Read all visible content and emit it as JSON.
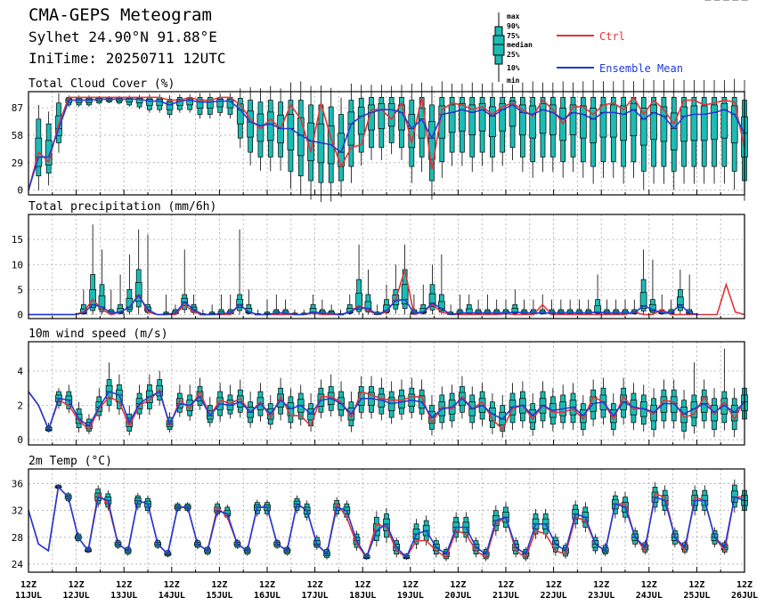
{
  "header": {
    "title": "CMA-GEPS Meteogram",
    "location": "Sylhet 24.90°N 91.88°E",
    "init_time": "IniTime: 20250711 12UTC"
  },
  "legend": {
    "box_labels": [
      "max",
      "90%",
      "75%",
      "median",
      "25%",
      "10%",
      "min"
    ],
    "ctrl_label": "Ctrl",
    "mean_label": "Ensemble Mean",
    "ctrl_color": "#e0343a",
    "mean_color": "#1f3bd6",
    "box_fill": "#1bbcb4"
  },
  "x_axis": {
    "hour_label": "12Z",
    "dates": [
      "11JUL",
      "12JUL",
      "13JUL",
      "14JUL",
      "15JUL",
      "16JUL",
      "17JUL",
      "18JUL",
      "19JUL",
      "20JUL",
      "21JUL",
      "22JUL",
      "23JUL",
      "24JUL",
      "25JUL",
      "26JUL"
    ]
  },
  "chart_data": [
    {
      "type": "box",
      "title": "Total Cloud Cover (%)",
      "yticks": [
        0,
        29,
        58,
        87
      ],
      "ylim": [
        -5,
        104
      ],
      "grid": true,
      "time_step_hours": 6,
      "ctrl": [
        0,
        40,
        30,
        70,
        98,
        98,
        98,
        98,
        98,
        98,
        98,
        98,
        98,
        98,
        95,
        95,
        98,
        95,
        95,
        98,
        98,
        90,
        75,
        65,
        75,
        65,
        90,
        75,
        40,
        92,
        55,
        25,
        45,
        48,
        85,
        85,
        75,
        92,
        50,
        98,
        22,
        85,
        92,
        90,
        85,
        88,
        80,
        88,
        92,
        85,
        78,
        95,
        85,
        70,
        88,
        88,
        80,
        90,
        92,
        85,
        98,
        80,
        95,
        85,
        70,
        95,
        95,
        90,
        92,
        95,
        93,
        45
      ],
      "mean": [
        0,
        35,
        35,
        65,
        95,
        95,
        95,
        96,
        96,
        96,
        96,
        96,
        94,
        94,
        90,
        94,
        95,
        93,
        93,
        94,
        94,
        85,
        72,
        68,
        70,
        65,
        65,
        58,
        52,
        50,
        48,
        40,
        70,
        78,
        82,
        85,
        85,
        82,
        65,
        75,
        55,
        80,
        82,
        85,
        82,
        85,
        78,
        85,
        90,
        82,
        80,
        85,
        82,
        75,
        82,
        80,
        75,
        82,
        82,
        80,
        85,
        75,
        82,
        78,
        65,
        78,
        80,
        80,
        82,
        85,
        80,
        60
      ],
      "p10": [
        0,
        15,
        18,
        50,
        90,
        90,
        90,
        92,
        93,
        92,
        90,
        88,
        85,
        85,
        80,
        85,
        85,
        80,
        80,
        82,
        80,
        55,
        40,
        35,
        35,
        35,
        20,
        15,
        10,
        8,
        8,
        10,
        25,
        40,
        45,
        45,
        50,
        45,
        25,
        35,
        10,
        30,
        40,
        40,
        35,
        40,
        35,
        40,
        45,
        35,
        30,
        35,
        35,
        30,
        35,
        30,
        25,
        30,
        30,
        25,
        30,
        20,
        25,
        25,
        20,
        25,
        25,
        25,
        25,
        25,
        20,
        10
      ],
      "p90": [
        0,
        75,
        70,
        92,
        98,
        98,
        98,
        98,
        98,
        98,
        98,
        98,
        98,
        98,
        96,
        98,
        98,
        98,
        98,
        98,
        98,
        97,
        95,
        93,
        95,
        93,
        95,
        95,
        90,
        90,
        88,
        80,
        95,
        97,
        98,
        98,
        98,
        98,
        95,
        98,
        90,
        98,
        98,
        98,
        98,
        98,
        98,
        98,
        98,
        98,
        98,
        98,
        98,
        98,
        98,
        98,
        98,
        98,
        98,
        98,
        98,
        98,
        98,
        98,
        98,
        98,
        98,
        98,
        98,
        98,
        98,
        95
      ]
    },
    {
      "type": "box",
      "title": "Total precipitation (mm/6h)",
      "yticks": [
        0,
        5,
        10,
        15
      ],
      "ylim": [
        -0.8,
        20
      ],
      "grid": true,
      "ctrl": [
        0,
        0,
        0,
        0,
        0,
        0,
        0.5,
        3,
        1,
        0,
        0.5,
        1.5,
        4,
        0.5,
        0,
        0,
        0,
        2,
        0.5,
        0,
        0,
        0,
        0,
        2,
        0.5,
        0,
        0,
        0,
        0,
        0,
        0,
        0.3,
        0,
        0,
        0,
        0.5,
        1.8,
        0.8,
        0,
        0.5,
        3,
        9,
        0,
        0.5,
        2,
        0.5,
        0,
        0,
        0,
        0,
        0,
        0,
        0.2,
        0,
        0,
        0,
        2,
        0,
        0,
        0,
        0,
        0,
        0,
        0,
        0,
        0,
        0.5,
        0,
        0,
        1,
        0,
        0,
        0,
        0,
        0,
        0,
        6,
        0.5,
        0
      ],
      "mean": [
        0,
        0,
        0,
        0,
        0,
        0,
        0.3,
        2,
        1.5,
        0.3,
        0.5,
        1.5,
        3.8,
        1,
        0,
        0,
        0.3,
        2.5,
        1,
        0,
        0,
        0.2,
        0.3,
        2,
        0.5,
        0,
        0,
        0.3,
        0.3,
        0,
        0,
        0.5,
        0.3,
        0.2,
        0,
        0.5,
        1.5,
        1.2,
        0,
        0.8,
        2.8,
        3,
        0.3,
        0.5,
        2.3,
        1.2,
        0,
        0.3,
        0.3,
        0.3,
        0.3,
        0.3,
        0.3,
        0.5,
        0.3,
        0.3,
        0.3,
        0.3,
        0.3,
        0.3,
        0.3,
        0.3,
        0.5,
        0.3,
        0.3,
        0.3,
        0.3,
        1.8,
        1,
        0.3,
        0.3,
        2,
        0.3,
        0
      ],
      "p90": [
        0,
        0,
        0,
        0,
        0,
        0,
        2,
        8,
        6,
        1,
        2,
        5,
        9,
        2,
        0,
        0.5,
        1,
        4,
        2,
        0.2,
        0.5,
        1,
        1,
        4,
        2,
        0.2,
        0.5,
        1,
        1,
        0.3,
        0.3,
        2,
        1,
        0.8,
        0.2,
        2,
        7,
        4,
        0.5,
        3,
        5,
        9,
        1,
        2,
        6,
        4,
        0.5,
        1,
        2,
        1,
        1,
        1,
        1,
        2,
        1,
        1,
        1,
        1,
        1,
        1,
        1,
        1,
        3,
        1,
        1,
        1,
        1,
        7,
        3,
        1,
        1,
        5,
        1,
        0
      ],
      "max": [
        0,
        0,
        0,
        0,
        0,
        0,
        5,
        18,
        13,
        5,
        8,
        12,
        17,
        16,
        1,
        4,
        2,
        13,
        4,
        1,
        2,
        4,
        4,
        17,
        5,
        1,
        3,
        4,
        3,
        1,
        1,
        4,
        3,
        2,
        1,
        4,
        14,
        9,
        2,
        6,
        10,
        14,
        4,
        6,
        10,
        12,
        2,
        4,
        4,
        3,
        4,
        3,
        3,
        5,
        3,
        3,
        4,
        3,
        3,
        3,
        3,
        3,
        8,
        3,
        3,
        3,
        3,
        13,
        11,
        4,
        3,
        9,
        8,
        0
      ]
    },
    {
      "type": "box",
      "title": "10m wind speed (m/s)",
      "yticks": [
        0,
        2,
        4
      ],
      "ylim": [
        -0.3,
        5.7
      ],
      "grid": true,
      "ctrl": [
        2.8,
        2.0,
        0.6,
        2.3,
        2.0,
        1.1,
        0.6,
        1.8,
        2.5,
        2.2,
        0.8,
        2.0,
        2.3,
        2.9,
        0.8,
        2.3,
        1.8,
        2.8,
        1.4,
        2.3,
        2.1,
        2.4,
        1.6,
        2.2,
        1.3,
        2.5,
        1.4,
        1.4,
        0.8,
        2.5,
        2.5,
        2.2,
        1.3,
        2.8,
        2.6,
        2.4,
        2.3,
        2.3,
        2.5,
        2.5,
        1.0,
        1.9,
        1.8,
        2.5,
        1.8,
        2.2,
        1.2,
        0.6,
        1.8,
        2.0,
        1.2,
        2.0,
        1.6,
        1.6,
        1.8,
        1.2,
        2.5,
        2.2,
        1.2,
        2.5,
        1.8,
        1.8,
        1.5,
        2.3,
        2.2,
        1.3,
        1.5,
        2.5,
        1.5,
        2.2,
        1.2,
        2.3
      ],
      "mean": [
        2.8,
        2.0,
        0.6,
        2.4,
        2.3,
        1.2,
        0.8,
        1.9,
        2.8,
        2.6,
        1.0,
        2.1,
        2.5,
        2.8,
        0.9,
        2.1,
        2.0,
        2.5,
        1.4,
        2.1,
        2.0,
        2.2,
        1.6,
        2.1,
        1.5,
        2.3,
        1.8,
        2.0,
        1.5,
        2.3,
        2.4,
        2.1,
        1.5,
        2.4,
        2.4,
        2.3,
        2.1,
        2.2,
        2.3,
        2.2,
        1.3,
        1.8,
        1.9,
        2.4,
        1.8,
        2.0,
        1.5,
        1.2,
        1.9,
        2.0,
        1.4,
        2.0,
        1.7,
        1.8,
        1.9,
        1.4,
        2.1,
        2.2,
        1.4,
        2.2,
        1.9,
        1.8,
        1.6,
        2.1,
        2.1,
        1.5,
        1.8,
        2.1,
        1.6,
        2.0,
        1.6,
        2.2
      ],
      "p10": [
        2.8,
        2.0,
        0.5,
        2.0,
        1.8,
        0.7,
        0.5,
        1.4,
        2.0,
        1.8,
        0.5,
        1.5,
        1.8,
        2.3,
        0.6,
        1.6,
        1.4,
        2.0,
        1.0,
        1.4,
        1.5,
        1.6,
        1.0,
        1.4,
        0.9,
        1.5,
        1.0,
        1.2,
        0.8,
        1.6,
        1.7,
        1.4,
        0.8,
        1.6,
        1.6,
        1.5,
        1.3,
        1.5,
        1.6,
        1.5,
        0.6,
        1.0,
        1.1,
        1.6,
        1.0,
        1.2,
        0.7,
        0.5,
        1.0,
        1.1,
        0.6,
        1.1,
        0.9,
        1.0,
        1.0,
        0.6,
        1.2,
        1.3,
        0.6,
        1.3,
        1.0,
        0.9,
        0.6,
        1.1,
        1.1,
        0.5,
        0.8,
        1.1,
        0.6,
        1.0,
        0.6,
        1.2
      ],
      "p90": [
        2.8,
        2.0,
        0.8,
        2.8,
        2.8,
        1.8,
        1.2,
        2.5,
        3.5,
        3.2,
        1.5,
        2.7,
        3.2,
        3.5,
        1.3,
        2.7,
        2.6,
        3.1,
        2.0,
        2.8,
        2.6,
        2.9,
        2.2,
        2.8,
        2.1,
        3.0,
        2.5,
        2.7,
        2.1,
        3.0,
        3.1,
        2.8,
        2.2,
        3.1,
        3.1,
        3.0,
        2.8,
        2.9,
        3.0,
        2.9,
        2.0,
        2.6,
        2.7,
        3.1,
        2.6,
        2.8,
        2.2,
        2.0,
        2.7,
        2.8,
        2.1,
        2.8,
        2.5,
        2.6,
        2.7,
        2.1,
        2.9,
        3.0,
        2.1,
        3.0,
        2.7,
        2.6,
        2.4,
        2.9,
        2.9,
        2.3,
        2.6,
        2.9,
        2.4,
        2.8,
        2.4,
        3.0
      ],
      "max": [
        2.8,
        2.0,
        1.0,
        3.0,
        3.2,
        2.2,
        1.5,
        3.0,
        4.5,
        3.8,
        2.0,
        3.2,
        3.8,
        4.0,
        1.6,
        3.2,
        3.2,
        3.6,
        2.5,
        3.3,
        3.2,
        3.5,
        2.8,
        3.3,
        2.6,
        3.6,
        3.0,
        3.2,
        2.7,
        3.5,
        3.8,
        3.4,
        2.8,
        3.7,
        3.7,
        3.6,
        3.4,
        3.5,
        3.6,
        3.5,
        2.6,
        3.1,
        3.2,
        3.7,
        3.1,
        3.3,
        2.7,
        2.6,
        3.3,
        3.4,
        2.7,
        3.4,
        3.0,
        3.2,
        3.3,
        2.6,
        3.5,
        3.6,
        2.7,
        3.6,
        3.3,
        3.2,
        3.0,
        3.5,
        3.5,
        2.9,
        4.5,
        3.5,
        3.0,
        5.3,
        3.0,
        3.6
      ]
    },
    {
      "type": "box",
      "title": "2m Temp (°C)",
      "yticks": [
        24,
        28,
        32,
        36
      ],
      "ylim": [
        22.8,
        38.2
      ],
      "grid": true,
      "ctrl": [
        32,
        27,
        26,
        35.5,
        34,
        28,
        26,
        34.5,
        33,
        27,
        26,
        33.5,
        33,
        27,
        25.5,
        32.5,
        32.5,
        27,
        26,
        32.5,
        31,
        27,
        26,
        32.5,
        32.5,
        27,
        26,
        33,
        32,
        27,
        25.5,
        33,
        31,
        27,
        25,
        30,
        29.5,
        26,
        25,
        27.5,
        27.5,
        26,
        25,
        29,
        28.5,
        26,
        25,
        30,
        31,
        26,
        25,
        29,
        28.5,
        26,
        25.5,
        31,
        30.5,
        27,
        26,
        33,
        33,
        28,
        26,
        34.5,
        34,
        28,
        26,
        34,
        33.5,
        28,
        26,
        34,
        34
      ],
      "mean": [
        32,
        27,
        26,
        35.5,
        34,
        28,
        26,
        34,
        33.5,
        27,
        26,
        33.5,
        33,
        27,
        25.5,
        32.5,
        32.5,
        27,
        26,
        32,
        31.5,
        27,
        26,
        32.5,
        32.5,
        27,
        26,
        33,
        32,
        27,
        25.5,
        32.5,
        32,
        27.5,
        25,
        29,
        30,
        26.5,
        25,
        28.5,
        29,
        26.5,
        25.5,
        29.5,
        29.5,
        26.5,
        25.5,
        30.5,
        31,
        26.5,
        25.5,
        30,
        30,
        27,
        26,
        31.5,
        31,
        27,
        26,
        33,
        32.5,
        28,
        26.5,
        34,
        33.5,
        28,
        26.5,
        33.5,
        33.5,
        28,
        26.5,
        34,
        33.5
      ],
      "p10": [
        32,
        27,
        26,
        35.3,
        33.5,
        27.5,
        25.8,
        33,
        32.5,
        26.5,
        25.5,
        32.5,
        32,
        26.5,
        25.2,
        32,
        32,
        26.5,
        25.5,
        31.5,
        31,
        26.5,
        25.5,
        31.5,
        31.5,
        26.5,
        25.5,
        32,
        31,
        26.5,
        25,
        31.5,
        31,
        26.5,
        24.8,
        27.5,
        28,
        25.5,
        24.8,
        27,
        27.5,
        25.5,
        24.8,
        28,
        28,
        25.5,
        24.8,
        29,
        29.5,
        25.5,
        24.8,
        28.5,
        28.5,
        25.8,
        25.2,
        30,
        29.5,
        26,
        25.5,
        31.5,
        31,
        27,
        25.8,
        32.5,
        32,
        27,
        25.8,
        32,
        32,
        27,
        25.8,
        32.5,
        32
      ],
      "p90": [
        32,
        27,
        26,
        35.8,
        34.5,
        28.5,
        26.5,
        35.2,
        34.5,
        27.5,
        26.5,
        34.2,
        33.8,
        27.5,
        26,
        33,
        33,
        27.5,
        26.5,
        33,
        32.5,
        27.5,
        26.5,
        33.2,
        33.2,
        27.5,
        26.5,
        33.8,
        33,
        28,
        26.2,
        33.5,
        33,
        28.5,
        25.5,
        31,
        31.5,
        27.5,
        25.5,
        30,
        30.5,
        27.5,
        26.2,
        31,
        31,
        27.5,
        26.2,
        32,
        32.5,
        27.5,
        26.2,
        31.5,
        31.5,
        28,
        26.8,
        32.8,
        32.5,
        28,
        26.8,
        34.2,
        34,
        29,
        27.2,
        35.5,
        35,
        29,
        27.2,
        35,
        35,
        29,
        27.2,
        35.8,
        35
      ]
    }
  ]
}
